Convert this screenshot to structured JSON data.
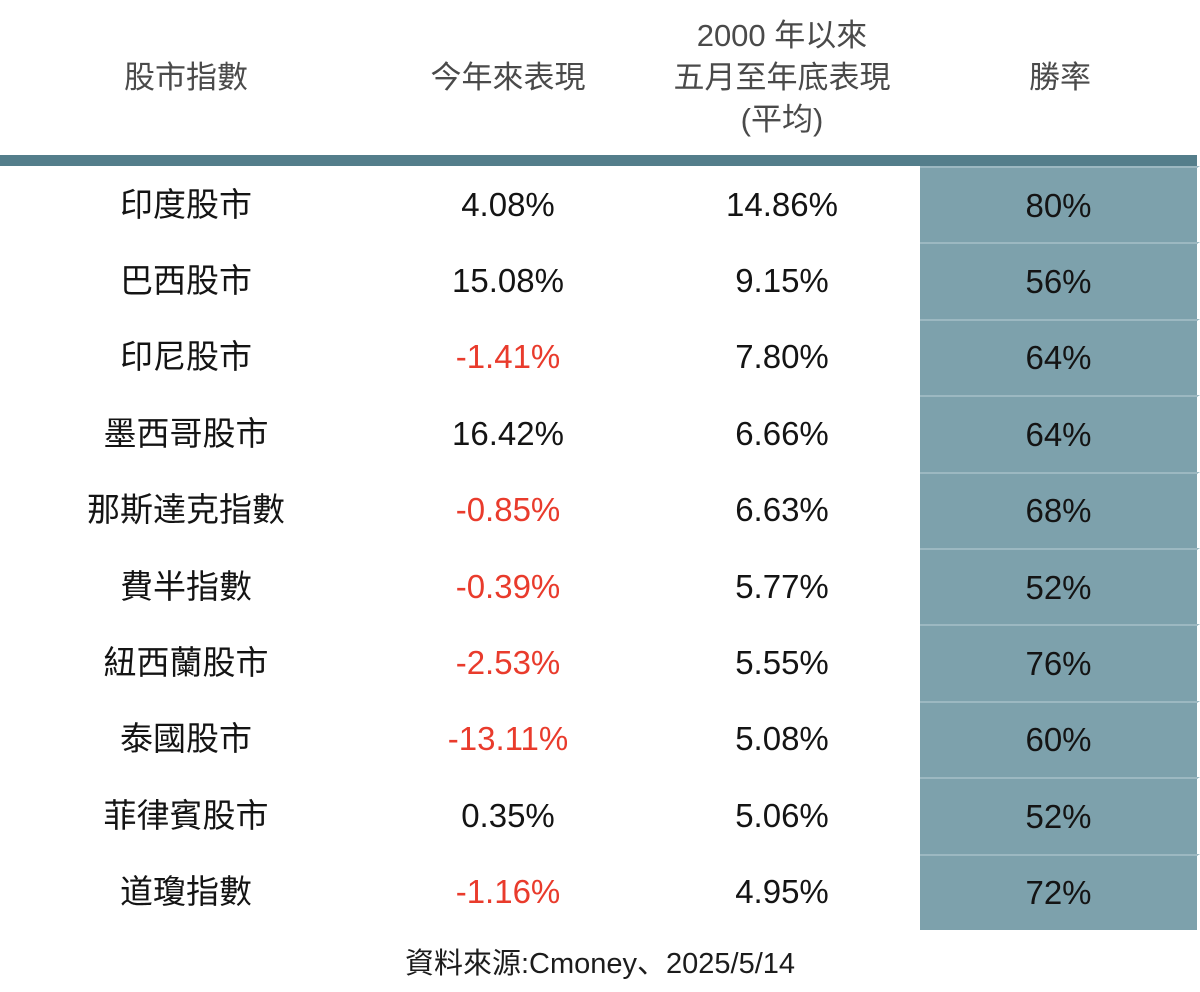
{
  "chart_data": {
    "type": "table",
    "headers": [
      {
        "lines": [
          "股市指數"
        ]
      },
      {
        "lines": [
          "今年來表現"
        ]
      },
      {
        "lines": [
          "2000 年以來",
          "五月至年底表現",
          "(平均)"
        ]
      },
      {
        "lines": [
          "勝率"
        ]
      }
    ],
    "rows": [
      {
        "market": "印度股市",
        "ytd": "4.08%",
        "avg_may_to_eoy": "14.86%",
        "win_rate": "80%"
      },
      {
        "market": "巴西股市",
        "ytd": "15.08%",
        "avg_may_to_eoy": "9.15%",
        "win_rate": "56%"
      },
      {
        "market": "印尼股市",
        "ytd": "-1.41%",
        "avg_may_to_eoy": "7.80%",
        "win_rate": "64%"
      },
      {
        "market": "墨西哥股市",
        "ytd": "16.42%",
        "avg_may_to_eoy": "6.66%",
        "win_rate": "64%"
      },
      {
        "market": "那斯達克指數",
        "ytd": "-0.85%",
        "avg_may_to_eoy": "6.63%",
        "win_rate": "68%"
      },
      {
        "market": "費半指數",
        "ytd": "-0.39%",
        "avg_may_to_eoy": "5.77%",
        "win_rate": "52%"
      },
      {
        "market": "紐西蘭股市",
        "ytd": "-2.53%",
        "avg_may_to_eoy": "5.55%",
        "win_rate": "76%"
      },
      {
        "market": "泰國股市",
        "ytd": "-13.11%",
        "avg_may_to_eoy": "5.08%",
        "win_rate": "60%"
      },
      {
        "market": "菲律賓股市",
        "ytd": "0.35%",
        "avg_may_to_eoy": "5.06%",
        "win_rate": "52%"
      },
      {
        "market": "道瓊指數",
        "ytd": "-1.16%",
        "avg_may_to_eoy": "4.95%",
        "win_rate": "72%"
      }
    ],
    "source_note": "資料來源:Cmoney、2025/5/14",
    "layout": {
      "win_rate_column_highlighted": true,
      "negative_values_in_red": true,
      "grid": "off"
    }
  },
  "colors": {
    "divider_teal": "#547e8b",
    "win_rate_column_bg": "#7da1ac",
    "win_rate_row_separator": "#9cb8c1",
    "negative_red": "#e93b2c",
    "header_text": "#4a4a4a",
    "body_text": "#141414"
  }
}
